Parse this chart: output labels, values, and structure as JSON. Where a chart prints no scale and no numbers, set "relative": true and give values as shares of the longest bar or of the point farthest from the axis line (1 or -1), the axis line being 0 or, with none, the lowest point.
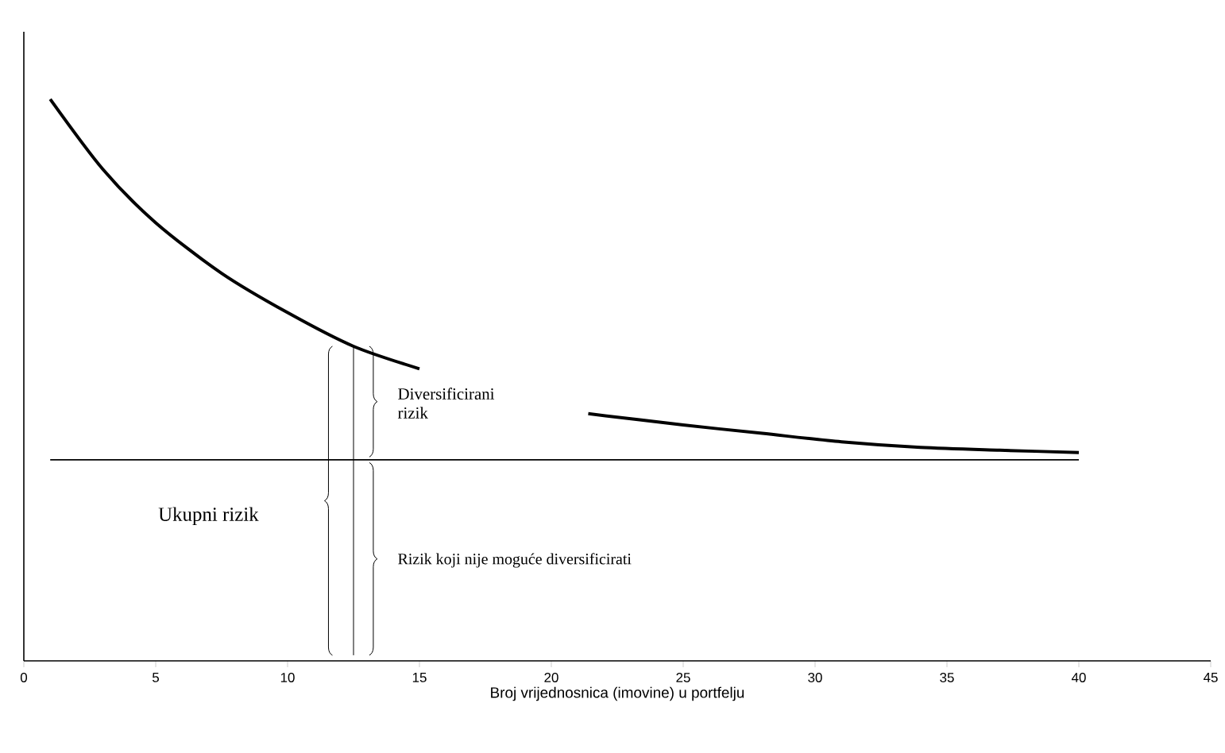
{
  "chart_data": {
    "type": "line",
    "relative": true,
    "xlabel": "Broj vrijednosnica (imovine) u portfelju",
    "xlim": [
      0,
      45
    ],
    "xticks": [
      0,
      5,
      10,
      15,
      20,
      25,
      30,
      35,
      40,
      45
    ],
    "series": [
      {
        "color": "#000000",
        "x": [
          1,
          3,
          5,
          7.5,
          10,
          12.5,
          15,
          18,
          21.4,
          25,
          28,
          31,
          34,
          37,
          40
        ],
        "values": [
          1,
          0.875,
          0.78,
          0.69,
          0.62,
          0.56,
          0.52,
          null,
          0.44,
          0.42,
          0.405,
          0.39,
          0.38,
          0.375,
          0.371
        ]
      },
      {
        "color": "#000000",
        "x": [
          1,
          40
        ],
        "values": [
          0.358,
          0.358
        ]
      }
    ],
    "annotations": [
      "Diversificirani rizik",
      "Ukupni rizik",
      "Rizik koji nije moguće diversificirati"
    ]
  }
}
